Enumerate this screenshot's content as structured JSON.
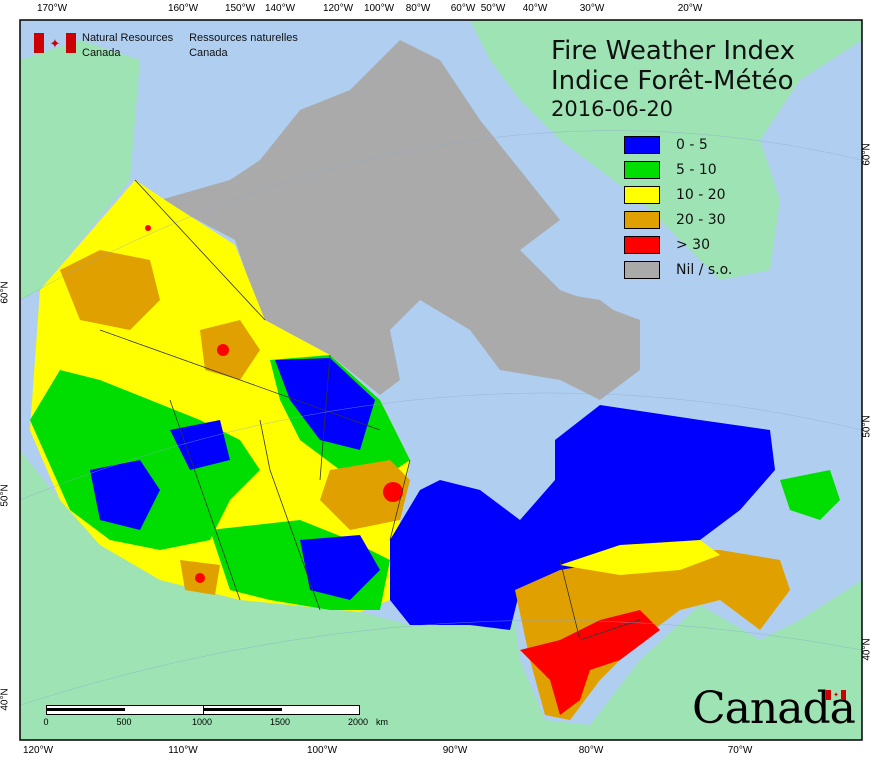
{
  "title_en": "Fire Weather Index",
  "title_fr": "Indice Forêt-Météo",
  "date": "2016-06-20",
  "agency": {
    "en_line1": "Natural Resources",
    "en_line2": "Canada",
    "fr_line1": "Ressources naturelles",
    "fr_line2": "Canada",
    "icon": "canada-flag-icon"
  },
  "wordmark": "Canada",
  "legend": [
    {
      "label": "0 - 5",
      "color": "#0000ff"
    },
    {
      "label": "5 - 10",
      "color": "#00dd00"
    },
    {
      "label": "10 - 20",
      "color": "#ffff00"
    },
    {
      "label": "20 - 30",
      "color": "#e0a000"
    },
    {
      "label": "> 30",
      "color": "#ff0000"
    },
    {
      "label": "Nil / s.o.",
      "color": "#aaaaaa"
    }
  ],
  "top_ticks": [
    "170°W",
    "160°W",
    "150°W",
    "140°W",
    "120°W",
    "100°W",
    "80°W",
    "60°W",
    "50°W",
    "40°W",
    "30°W",
    "20°W"
  ],
  "bottom_ticks": [
    "120°W",
    "110°W",
    "100°W",
    "90°W",
    "80°W",
    "70°W"
  ],
  "left_ticks": [
    "60°N",
    "50°N",
    "40°N"
  ],
  "right_ticks": [
    "60°N",
    "50°N",
    "40°N"
  ],
  "scale": {
    "labels": [
      "0",
      "500",
      "1000",
      "1500",
      "2000"
    ],
    "unit": "km"
  },
  "colors": {
    "ocean": "#b0cff0",
    "foreign_land": "#9ee3b4",
    "border": "#000000"
  }
}
